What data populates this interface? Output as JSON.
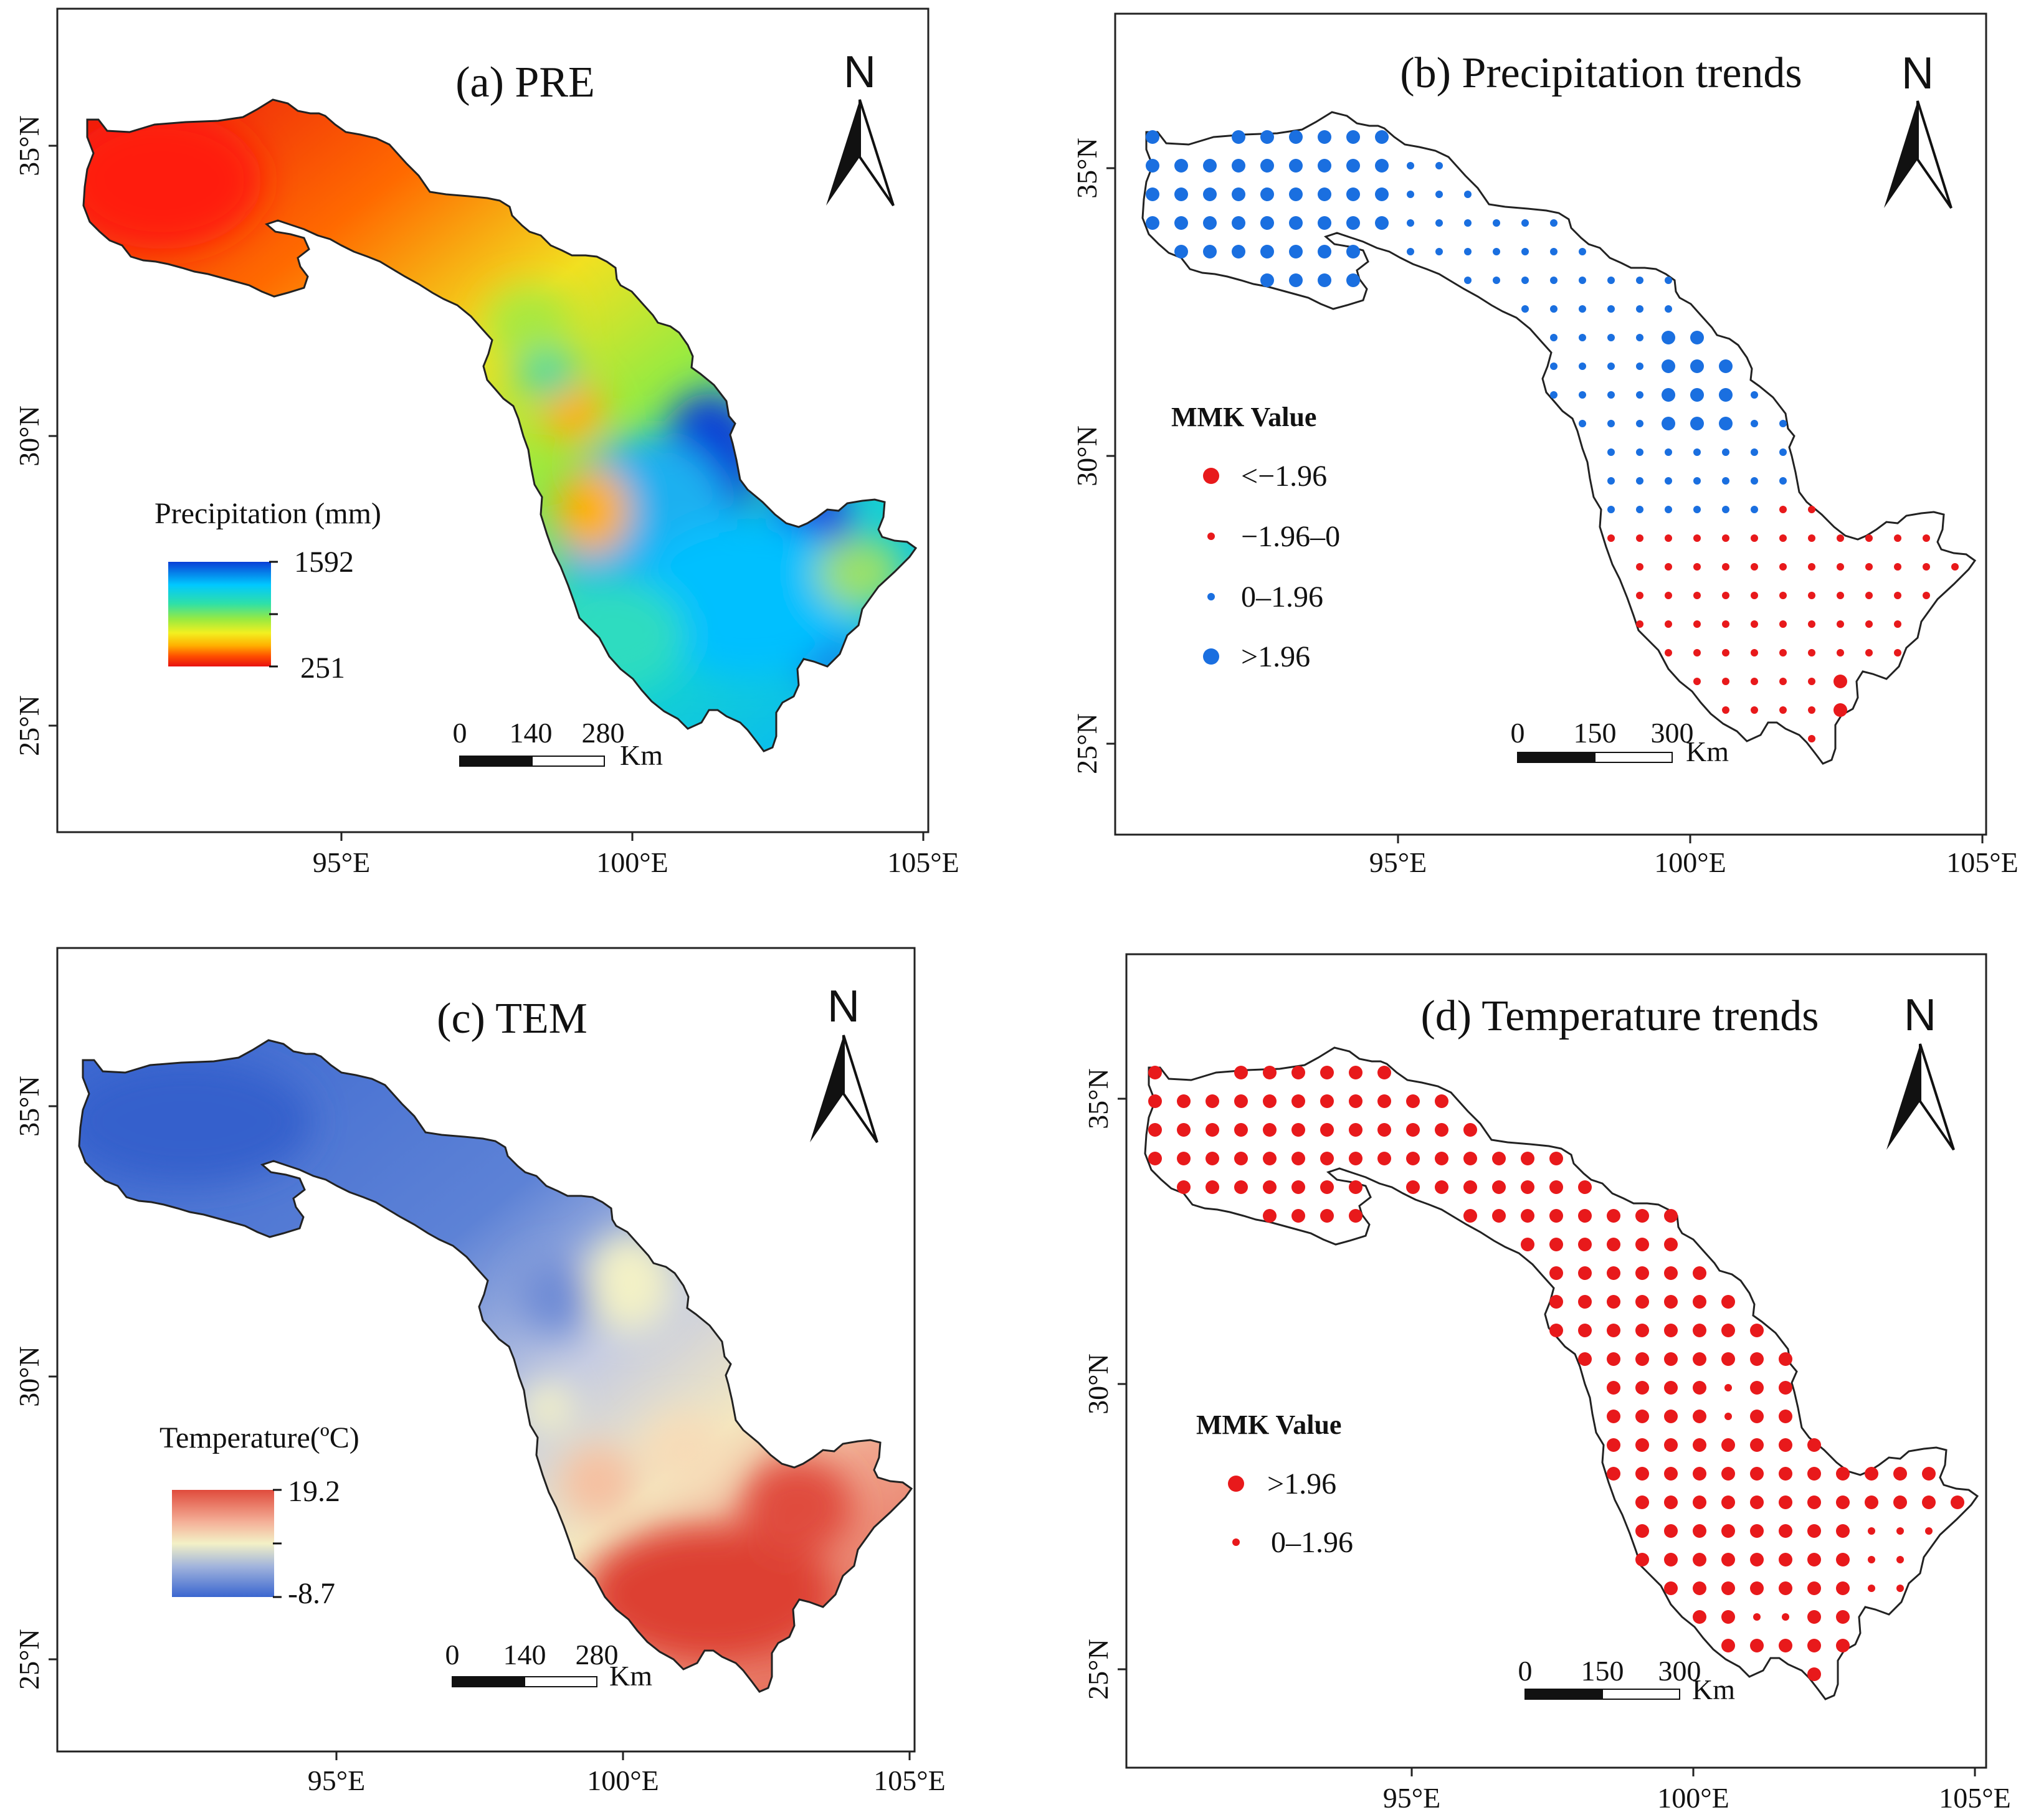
{
  "colors": {
    "pre_gradient": [
      "#0b3fd6",
      "#00c8ff",
      "#2ee0a8",
      "#9aea40",
      "#f2f020",
      "#ffb000",
      "#ff5000",
      "#e81010"
    ],
    "tem_gradient": [
      "#3a66d0",
      "#9fb2dc",
      "#f3f1c6",
      "#f4b098",
      "#e04b3c"
    ],
    "decrease": "#e8191b",
    "increase": "#1a6fe0"
  },
  "axes": {
    "x_ticks": [
      "95°E",
      "100°E",
      "105°E"
    ],
    "y_ticks": [
      "35°N",
      "30°N",
      "25°N"
    ]
  },
  "north": "N",
  "panels": {
    "a": {
      "title": "(a) PRE",
      "legend_title": "Precipitation (mm)",
      "max": "1592",
      "min": "251",
      "scale": [
        "0",
        "140",
        "280"
      ],
      "unit": "Km"
    },
    "b": {
      "title": "(b) Precipitation trends",
      "legend_title": "MMK Value",
      "classes": [
        "<−1.96",
        "−1.96–0",
        "0–1.96",
        ">1.96"
      ],
      "class_values": [
        {
          "label": "<−1.96",
          "trend": "decrease",
          "strength": "strong"
        },
        {
          "label": "−1.96–0",
          "trend": "decrease",
          "strength": "weak"
        },
        {
          "label": "0–1.96",
          "trend": "increase",
          "strength": "weak"
        },
        {
          "label": ">1.96",
          "trend": "increase",
          "strength": "strong"
        }
      ],
      "scale": [
        "0",
        "150",
        "300"
      ],
      "unit": "Km"
    },
    "c": {
      "title": "(c) TEM",
      "legend_title": "Temperature(ºC)",
      "max": "19.2",
      "min": "-8.7",
      "scale": [
        "0",
        "140",
        "280"
      ],
      "unit": "Km"
    },
    "d": {
      "title": "(d) Temperature trends",
      "legend_title": "MMK Value",
      "classes": [
        ">1.96",
        "0–1.96"
      ],
      "class_values": [
        {
          "label": ">1.96",
          "trend": "increase",
          "strength": "strong"
        },
        {
          "label": "0–1.96",
          "trend": "increase",
          "strength": "weak"
        }
      ],
      "scale": [
        "0",
        "150",
        "300"
      ],
      "unit": "Km"
    }
  }
}
